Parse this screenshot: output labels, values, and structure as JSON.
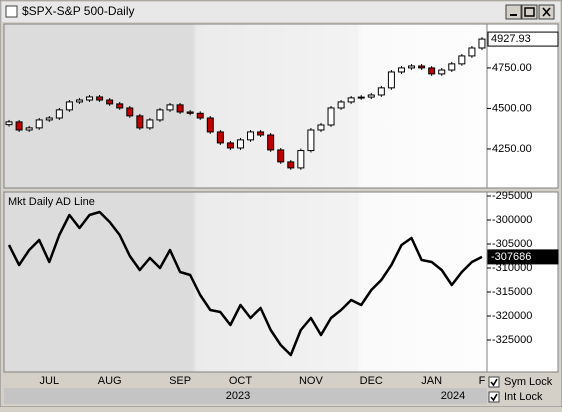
{
  "window": {
    "title": "$SPX-S&P 500-Daily",
    "checkboxes": [
      {
        "label": "Sym Lock",
        "checked": true
      },
      {
        "label": "Int Lock",
        "checked": true
      }
    ]
  },
  "chart_data": [
    {
      "type": "candlestick",
      "up_color": "#ffffff",
      "down_color": "#c00000",
      "open": [
        4400,
        4417,
        4367,
        4380,
        4429,
        4441,
        4491,
        4540,
        4552,
        4571,
        4552,
        4528,
        4503,
        4454,
        4380,
        4429,
        4491,
        4522,
        4478,
        4470,
        4441,
        4355,
        4287,
        4256,
        4306,
        4355,
        4336,
        4244,
        4170,
        4133,
        4240,
        4367,
        4398,
        4503,
        4540,
        4565,
        4570,
        4583,
        4627,
        4725,
        4750,
        4762,
        4750,
        4713,
        4737,
        4775,
        4824,
        4873
      ],
      "high": [
        4429,
        4429,
        4392,
        4441,
        4453,
        4503,
        4552,
        4564,
        4583,
        4583,
        4564,
        4540,
        4515,
        4466,
        4441,
        4503,
        4534,
        4534,
        4490,
        4482,
        4453,
        4367,
        4299,
        4318,
        4367,
        4367,
        4348,
        4256,
        4182,
        4252,
        4379,
        4410,
        4515,
        4552,
        4577,
        4582,
        4595,
        4639,
        4737,
        4762,
        4774,
        4774,
        4762,
        4749,
        4787,
        4836,
        4885,
        4940
      ],
      "low": [
        4388,
        4355,
        4355,
        4368,
        4417,
        4429,
        4479,
        4528,
        4540,
        4540,
        4516,
        4491,
        4442,
        4368,
        4368,
        4417,
        4479,
        4466,
        4458,
        4429,
        4343,
        4275,
        4244,
        4244,
        4294,
        4324,
        4232,
        4158,
        4121,
        4121,
        4228,
        4355,
        4386,
        4491,
        4528,
        4553,
        4558,
        4571,
        4615,
        4713,
        4738,
        4738,
        4701,
        4701,
        4725,
        4763,
        4812,
        4861
      ],
      "close": [
        4417,
        4367,
        4380,
        4429,
        4441,
        4491,
        4540,
        4552,
        4571,
        4552,
        4528,
        4503,
        4454,
        4380,
        4429,
        4491,
        4522,
        4478,
        4470,
        4441,
        4355,
        4287,
        4256,
        4306,
        4355,
        4336,
        4244,
        4170,
        4133,
        4240,
        4367,
        4398,
        4503,
        4540,
        4565,
        4570,
        4583,
        4627,
        4725,
        4750,
        4762,
        4750,
        4713,
        4737,
        4775,
        4824,
        4873,
        4927.93
      ],
      "ylim": [
        4009,
        5021
      ],
      "yticks": [
        {
          "value": 4250,
          "label": "4250.00"
        },
        {
          "value": 4500,
          "label": "4500.00"
        },
        {
          "value": 4750,
          "label": "4750.00"
        }
      ],
      "grid": false
    },
    {
      "type": "line",
      "title": "Mkt Daily AD Line",
      "color": "#000000",
      "categories": [
        null,
        null,
        null,
        null,
        "JUL",
        null,
        null,
        null,
        null,
        null,
        "AUG",
        null,
        null,
        null,
        null,
        null,
        null,
        "SEP",
        null,
        null,
        null,
        null,
        null,
        "OCT",
        null,
        null,
        null,
        null,
        null,
        null,
        "NOV",
        null,
        null,
        null,
        null,
        null,
        "DEC",
        null,
        null,
        null,
        null,
        null,
        "JAN",
        null,
        null,
        null,
        null,
        "F"
      ],
      "years": [
        "2023",
        "2024"
      ],
      "values": [
        -305208,
        -309375,
        -306250,
        -304167,
        -308750,
        -303125,
        -298958,
        -301667,
        -298958,
        -298333,
        -300417,
        -303125,
        -307500,
        -310417,
        -307917,
        -310000,
        -306250,
        -310833,
        -311458,
        -315625,
        -318750,
        -319167,
        -321875,
        -317708,
        -320417,
        -318333,
        -322917,
        -326042,
        -328125,
        -322917,
        -320417,
        -323958,
        -320417,
        -318750,
        -316667,
        -317708,
        -314583,
        -312500,
        -309375,
        -305208,
        -303750,
        -308333,
        -308750,
        -310417,
        -313542,
        -310833,
        -308750,
        -307686
      ],
      "ylim": [
        -331667,
        -294167
      ],
      "yticks": [
        -325000,
        -320000,
        -315000,
        -310000,
        -305000,
        -300000,
        -295000
      ],
      "grid": false
    }
  ]
}
